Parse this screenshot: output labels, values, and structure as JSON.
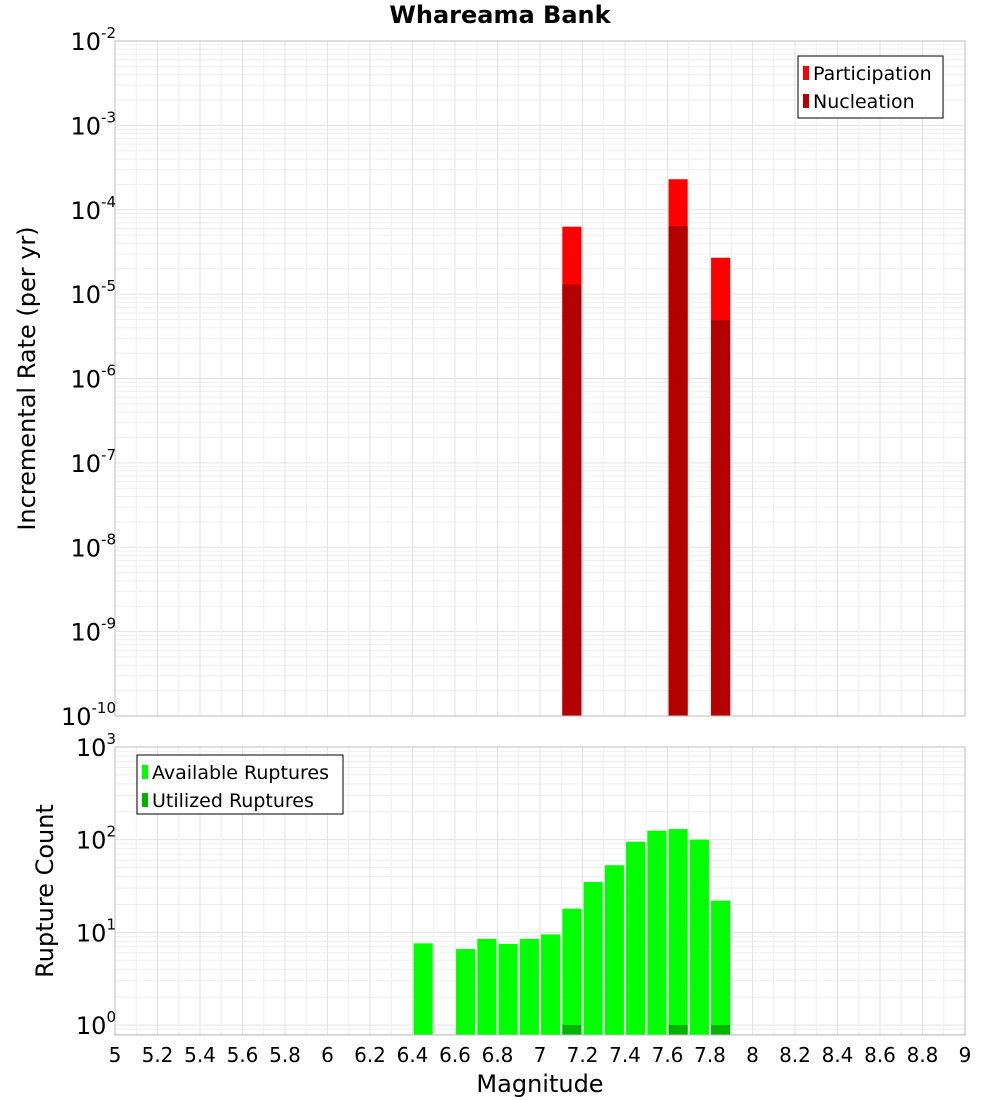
{
  "title": "Whareama Bank",
  "xlabel": "Magnitude",
  "chart_data": [
    {
      "type": "bar",
      "title": "Whareama Bank",
      "xlabel": "Magnitude",
      "ylabel": "Incremental Rate (per yr)",
      "yscale": "log",
      "xlim": [
        5,
        9
      ],
      "ylim": [
        1e-10,
        0.01
      ],
      "yticks": [
        {
          "base": "10",
          "exp": "-10"
        },
        {
          "base": "10",
          "exp": "-9"
        },
        {
          "base": "10",
          "exp": "-8"
        },
        {
          "base": "10",
          "exp": "-7"
        },
        {
          "base": "10",
          "exp": "-6"
        },
        {
          "base": "10",
          "exp": "-5"
        },
        {
          "base": "10",
          "exp": "-4"
        },
        {
          "base": "10",
          "exp": "-3"
        },
        {
          "base": "10",
          "exp": "-2"
        }
      ],
      "grid": true,
      "legend_position": "top-right",
      "bar_width": 0.09,
      "series": [
        {
          "name": "Participation",
          "color": "#ff0000",
          "x": [
            7.15,
            7.65,
            7.85
          ],
          "values": [
            6.3e-05,
            0.00023,
            2.7e-05
          ]
        },
        {
          "name": "Nucleation",
          "color": "#b30000",
          "x": [
            7.15,
            7.65,
            7.85
          ],
          "values": [
            1.3e-05,
            6.4e-05,
            4.9e-06
          ]
        }
      ]
    },
    {
      "type": "bar",
      "xlabel": "Magnitude",
      "ylabel": "Rupture Count",
      "yscale": "log",
      "xlim": [
        5,
        9
      ],
      "ylim": [
        0.78,
        1000
      ],
      "yticks": [
        {
          "base": "10",
          "exp": "0"
        },
        {
          "base": "10",
          "exp": "1"
        },
        {
          "base": "10",
          "exp": "2"
        },
        {
          "base": "10",
          "exp": "3"
        }
      ],
      "xticks": [
        "5",
        "5.2",
        "5.4",
        "5.6",
        "5.8",
        "6",
        "6.2",
        "6.4",
        "6.6",
        "6.8",
        "7",
        "7.2",
        "7.4",
        "7.6",
        "7.8",
        "8",
        "8.2",
        "8.4",
        "8.6",
        "8.8",
        "9"
      ],
      "grid": true,
      "legend_position": "top-left",
      "bar_width": 0.09,
      "series": [
        {
          "name": "Available Ruptures",
          "color": "#00ff00",
          "x": [
            6.45,
            6.65,
            6.75,
            6.85,
            6.95,
            7.05,
            7.15,
            7.25,
            7.35,
            7.45,
            7.55,
            7.65,
            7.75,
            7.85
          ],
          "values": [
            7.6,
            6.6,
            8.5,
            7.5,
            8.5,
            9.5,
            18,
            35,
            53,
            95,
            125,
            130,
            100,
            22
          ]
        },
        {
          "name": "Utilized Ruptures",
          "color": "#00b300",
          "x": [
            7.15,
            7.65,
            7.85
          ],
          "values": [
            1,
            1,
            1
          ]
        }
      ]
    }
  ]
}
